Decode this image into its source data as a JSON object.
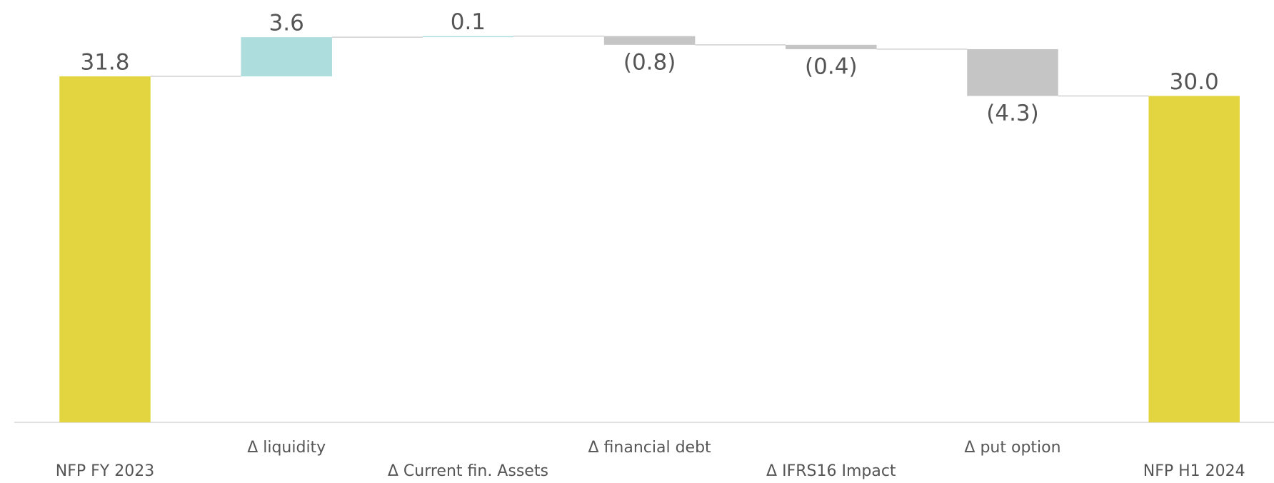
{
  "chart_data": {
    "type": "waterfall",
    "categories": [
      "NFP FY 2023",
      "Δ liquidity",
      "Δ Current fin. Assets",
      "Δ financial debt",
      "Δ IFRS16 Impact",
      "Δ put option",
      "NFP H1 2024"
    ],
    "values": [
      31.8,
      3.6,
      0.1,
      -0.8,
      -0.4,
      -4.3,
      30.0
    ],
    "value_labels": [
      "31.8",
      "3.6",
      "0.1",
      "(0.8)",
      "(0.4)",
      "(4.3)",
      "30.0"
    ],
    "is_total": [
      true,
      false,
      false,
      false,
      false,
      false,
      true
    ],
    "colors": {
      "total": "#e3d53f",
      "increase": "#aedddd",
      "decrease": "#c5c5c5"
    },
    "ylim": [
      0,
      38
    ]
  }
}
